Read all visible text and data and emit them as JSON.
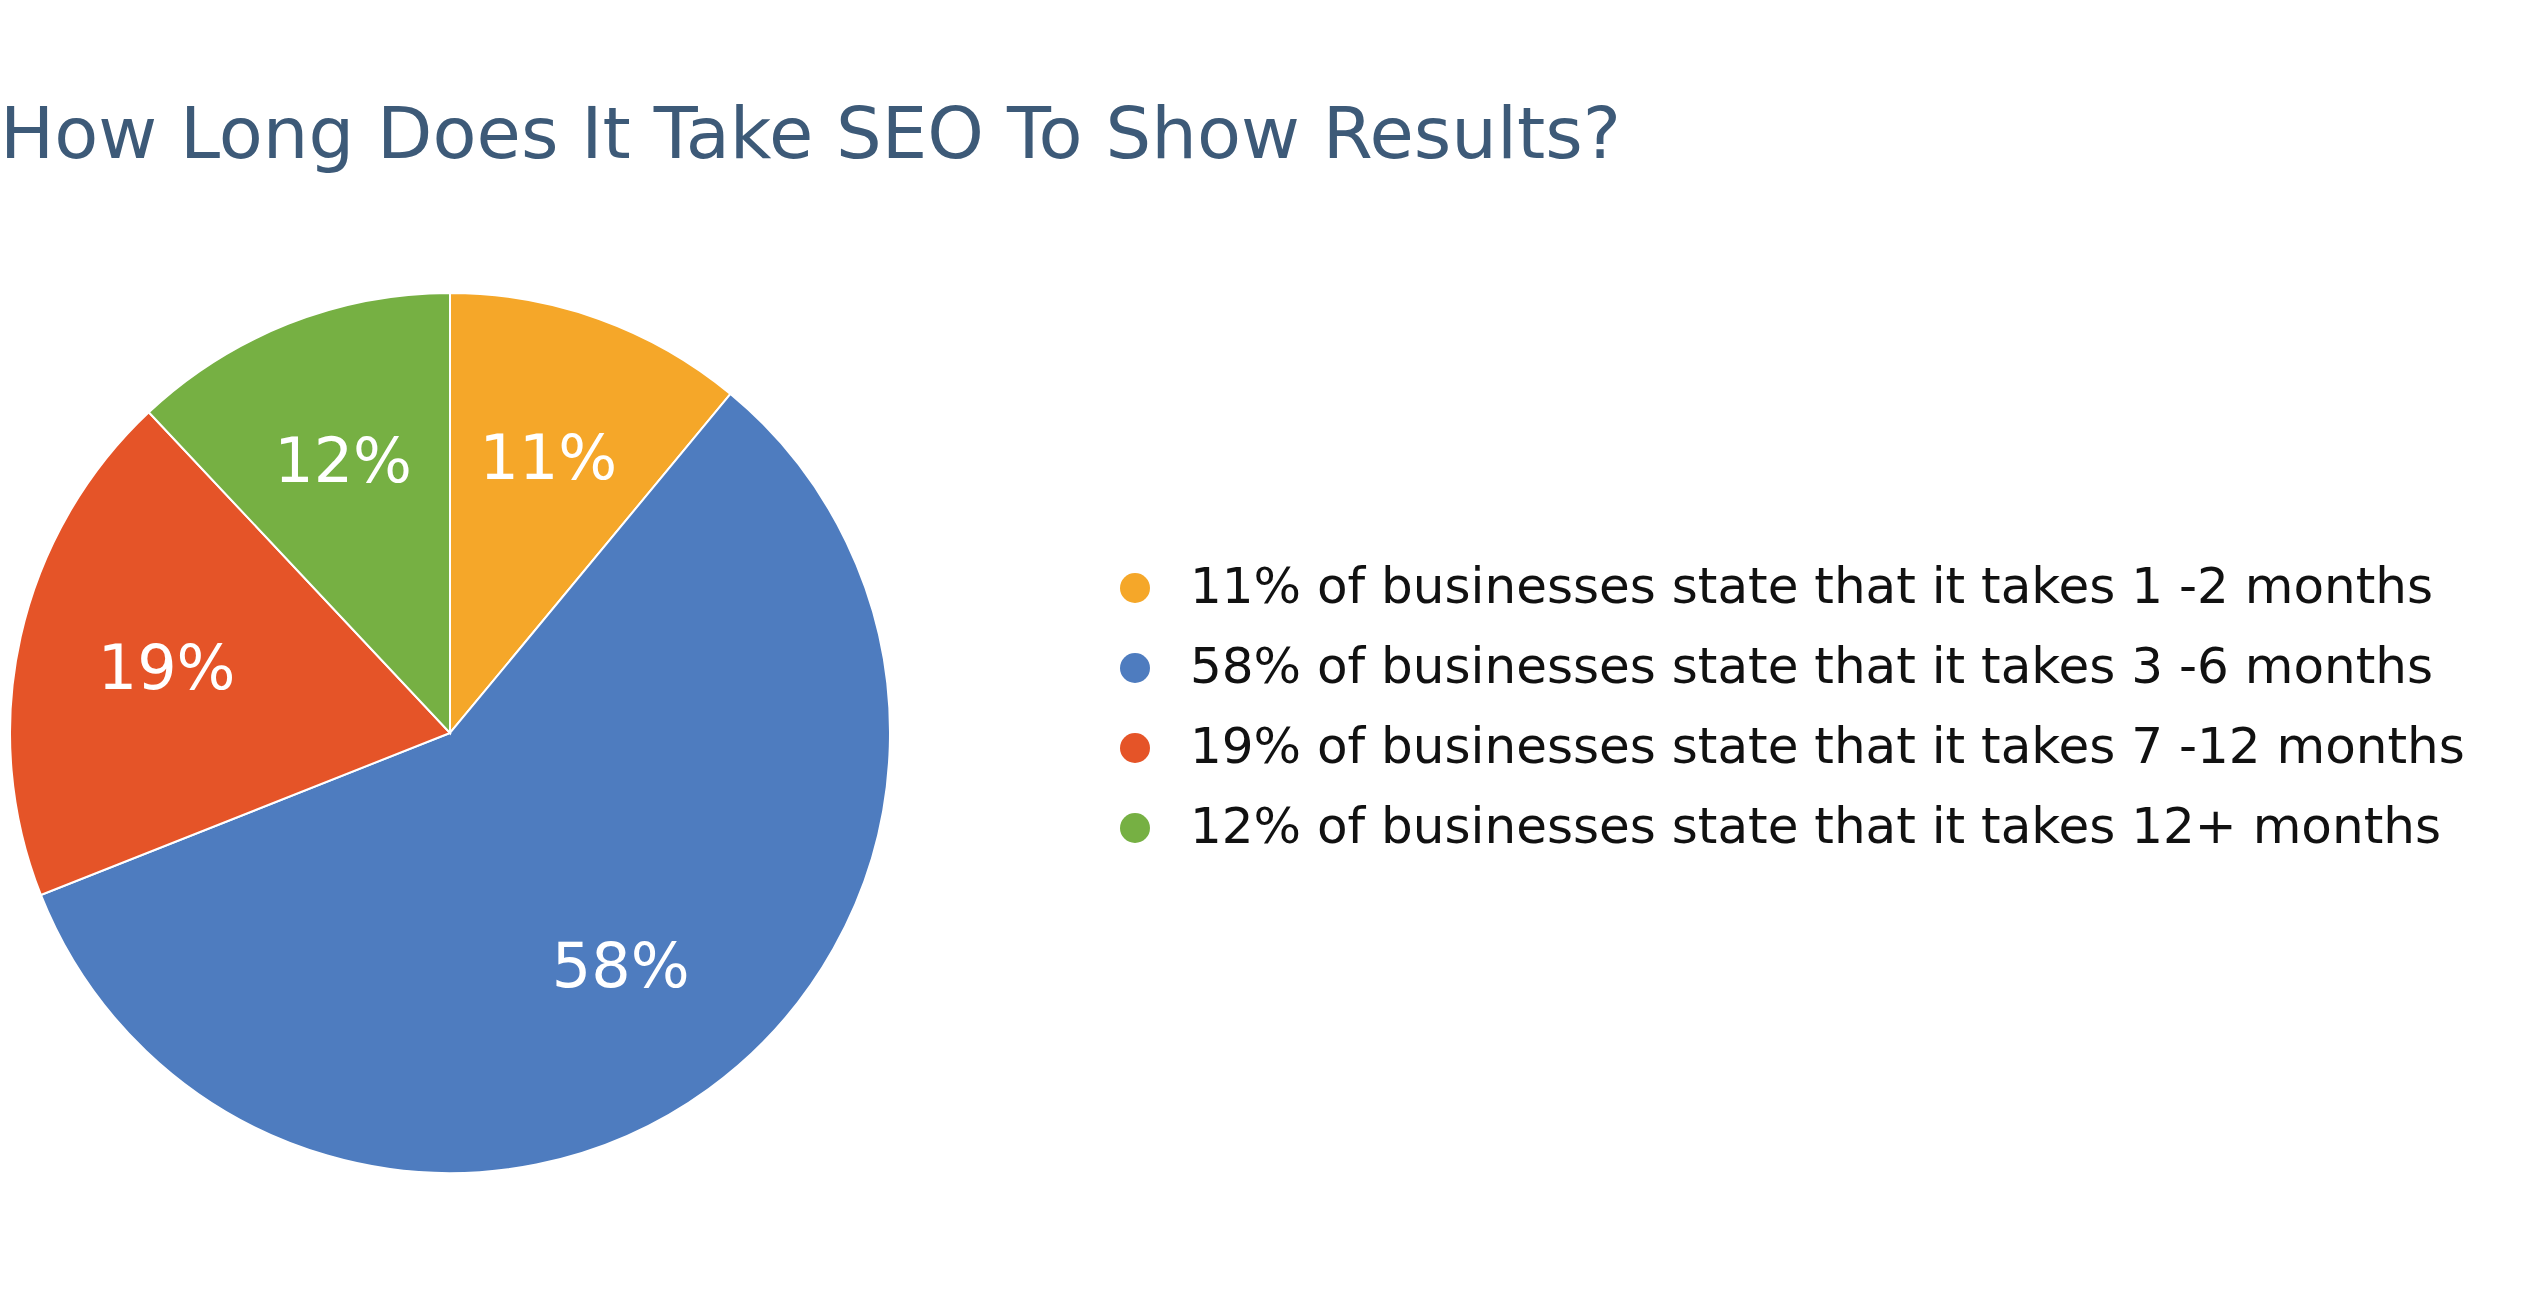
{
  "chart_data": {
    "type": "pie",
    "title": "How Long Does It Take SEO To Show Results?",
    "categories": [
      "11% of businesses state that it takes 1 -2 months",
      "58% of businesses state that it takes 3 -6 months",
      "19% of businesses state that it takes 7 -12 months",
      "12% of businesses state that it takes 12+ months"
    ],
    "values": [
      11,
      58,
      19,
      12
    ],
    "colors": [
      "#f5a729",
      "#4e7cbf",
      "#e55428",
      "#76b043"
    ],
    "value_labels": [
      "11%",
      "58%",
      "19%",
      "12%"
    ],
    "legend": "right"
  }
}
